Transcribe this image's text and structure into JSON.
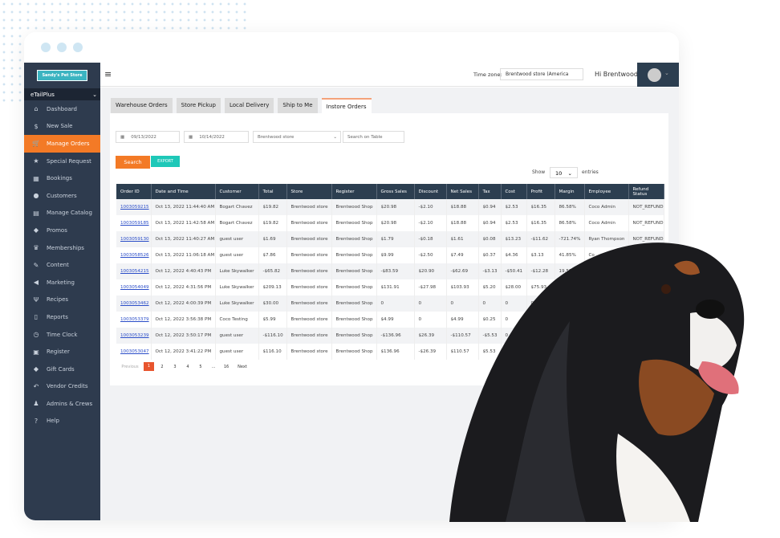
{
  "sidebar": {
    "logo": "Sandy's Pet Store",
    "brand": "eTailPlus",
    "items": [
      {
        "label": "Dashboard",
        "icon": "home-icon"
      },
      {
        "label": "New Sale",
        "icon": "dollar-icon"
      },
      {
        "label": "Manage Orders",
        "icon": "cart-icon",
        "active": true
      },
      {
        "label": "Special Request",
        "icon": "star-icon"
      },
      {
        "label": "Bookings",
        "icon": "calendar-icon"
      },
      {
        "label": "Customers",
        "icon": "user-icon"
      },
      {
        "label": "Manage Catalog",
        "icon": "catalog-icon"
      },
      {
        "label": "Promos",
        "icon": "tag-icon"
      },
      {
        "label": "Memberships",
        "icon": "crown-icon"
      },
      {
        "label": "Content",
        "icon": "edit-icon"
      },
      {
        "label": "Marketing",
        "icon": "megaphone-icon"
      },
      {
        "label": "Recipes",
        "icon": "utensils-icon"
      },
      {
        "label": "Reports",
        "icon": "report-icon"
      },
      {
        "label": "Time Clock",
        "icon": "clock-icon"
      },
      {
        "label": "Register",
        "icon": "register-icon"
      },
      {
        "label": "Gift Cards",
        "icon": "tag-icon"
      },
      {
        "label": "Vendor Credits",
        "icon": "reply-icon"
      },
      {
        "label": "Admins & Crews",
        "icon": "user-cog-icon"
      },
      {
        "label": "Help",
        "icon": "help-icon"
      }
    ]
  },
  "header": {
    "timezone_label": "Time zone:",
    "timezone_value": "Brentwood store (America",
    "greeting": "Hi Brentwood"
  },
  "tabs": [
    "Warehouse Orders",
    "Store Pickup",
    "Local Delivery",
    "Ship to Me",
    "Instore Orders"
  ],
  "filters": {
    "from": "09/13/2022",
    "to": "10/14/2022",
    "store": "Brentwood store",
    "search_placeholder": "Search on Table",
    "search_btn": "Search",
    "export_btn": "EXPORT",
    "show": "Show",
    "entries_value": "10",
    "entries": "entries"
  },
  "table": {
    "columns": [
      "Order ID",
      "Date and Time",
      "Customer",
      "Total",
      "Store",
      "Register",
      "Gross Sales",
      "Discount",
      "Net Sales",
      "Tax",
      "Cost",
      "Profit",
      "Margin",
      "Employee",
      "Refund Status"
    ],
    "rows": [
      [
        "1003059215",
        "Oct 13, 2022 11:44:40 AM",
        "Bogart Chavez",
        "$19.82",
        "Brentwood store",
        "Brentwood Shop",
        "$20.98",
        "-$2.10",
        "$18.88",
        "$0.94",
        "$2.53",
        "$16.35",
        "86.58%",
        "Coco Admin",
        "NOT_REFUNDED"
      ],
      [
        "1003059185",
        "Oct 13, 2022 11:42:58 AM",
        "Bogart Chavez",
        "$19.82",
        "Brentwood store",
        "Brentwood Shop",
        "$20.98",
        "-$2.10",
        "$18.88",
        "$0.94",
        "$2.53",
        "$16.35",
        "86.58%",
        "Coco Admin",
        "NOT_REFUNDED"
      ],
      [
        "1003059130",
        "Oct 13, 2022 11:40:27 AM",
        "guest user",
        "$1.69",
        "Brentwood store",
        "Brentwood Shop",
        "$1.79",
        "-$0.18",
        "$1.61",
        "$0.08",
        "$13.23",
        "-$11.62",
        "-721.74%",
        "Ryan Thompson",
        "NOT_REFUNDED"
      ],
      [
        "1003058526",
        "Oct 13, 2022 11:06:18 AM",
        "guest user",
        "$7.86",
        "Brentwood store",
        "Brentwood Shop",
        "$9.99",
        "-$2.50",
        "$7.49",
        "$0.37",
        "$4.36",
        "$3.13",
        "41.85%",
        "Co",
        ""
      ],
      [
        "1003054215",
        "Oct 12, 2022 4:40:43 PM",
        "Luke Skywalker",
        "-$65.82",
        "Brentwood store",
        "Brentwood Shop",
        "-$83.59",
        "$20.90",
        "-$62.69",
        "-$3.13",
        "-$50.41",
        "-$12.28",
        "19.59%",
        "",
        ""
      ],
      [
        "1003054049",
        "Oct 12, 2022 4:31:56 PM",
        "Luke Skywalker",
        "$209.13",
        "Brentwood store",
        "Brentwood Shop",
        "$131.91",
        "-$27.98",
        "$103.93",
        "$5.20",
        "$28.00",
        "$75.93",
        "",
        "",
        ""
      ],
      [
        "1003053462",
        "Oct 12, 2022 4:00:39 PM",
        "Luke Skywalker",
        "$30.00",
        "Brentwood store",
        "Brentwood Shop",
        "0",
        "0",
        "0",
        "0",
        "0",
        "0",
        "",
        "",
        ""
      ],
      [
        "1003053379",
        "Oct 12, 2022 3:56:38 PM",
        "Coco Testing",
        "$5.99",
        "Brentwood store",
        "Brentwood Shop",
        "$4.99",
        "0",
        "$4.99",
        "$0.25",
        "0",
        "$4.99",
        "",
        "",
        ""
      ],
      [
        "1003053239",
        "Oct 12, 2022 3:50:17 PM",
        "guest user",
        "-$116.10",
        "Brentwood store",
        "Brentwood Shop",
        "-$136.96",
        "$26.39",
        "-$110.57",
        "-$5.53",
        "0",
        "",
        "",
        "",
        ""
      ],
      [
        "1003053047",
        "Oct 12, 2022 3:41:22 PM",
        "guest user",
        "$116.10",
        "Brentwood store",
        "Brentwood Shop",
        "$136.96",
        "-$26.39",
        "$110.57",
        "$5.53",
        "0",
        "",
        "",
        "",
        ""
      ]
    ]
  },
  "pagination": {
    "previous": "Previous",
    "pages": [
      "1",
      "2",
      "3",
      "4",
      "5",
      "...",
      "16"
    ],
    "current": "1",
    "next": "Next"
  },
  "colors": {
    "sidebar": "#2e3b4e",
    "accent": "#f37a26",
    "export": "#1ec8b8",
    "table_header": "#2c3e50"
  }
}
